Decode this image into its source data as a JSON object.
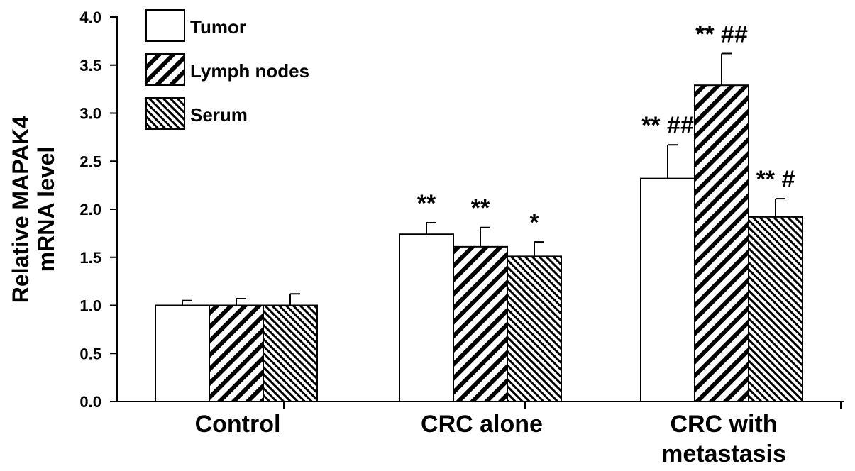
{
  "chart_data": {
    "type": "bar",
    "ylabel_lines": [
      "Relative MAPAK4",
      "mRNA level"
    ],
    "ylim": [
      0,
      4.0
    ],
    "yticks": [
      "0.0",
      "0.5",
      "1.0",
      "1.5",
      "2.0",
      "2.5",
      "3.0",
      "3.5",
      "4.0"
    ],
    "ytick_values": [
      0,
      0.5,
      1.0,
      1.5,
      2.0,
      2.5,
      3.0,
      3.5,
      4.0
    ],
    "categories": [
      [
        "Control"
      ],
      [
        "CRC alone"
      ],
      [
        "CRC with",
        "metastasis"
      ]
    ],
    "legend_position": "top-left",
    "series": [
      {
        "name": "Tumor",
        "pattern": "blank",
        "values": [
          1.0,
          1.74,
          2.32
        ],
        "errors": [
          0.05,
          0.12,
          0.35
        ],
        "annotations": [
          "",
          "**",
          "** ##"
        ]
      },
      {
        "name": "Lymph nodes",
        "pattern": "wide-diagonal",
        "values": [
          1.0,
          1.61,
          3.29
        ],
        "errors": [
          0.07,
          0.2,
          0.33
        ],
        "annotations": [
          "",
          "**",
          "** ##"
        ]
      },
      {
        "name": "Serum",
        "pattern": "dense-back-diagonal",
        "values": [
          1.0,
          1.51,
          1.92
        ],
        "errors": [
          0.12,
          0.15,
          0.19
        ],
        "annotations": [
          "",
          "*",
          "** #"
        ]
      }
    ]
  }
}
